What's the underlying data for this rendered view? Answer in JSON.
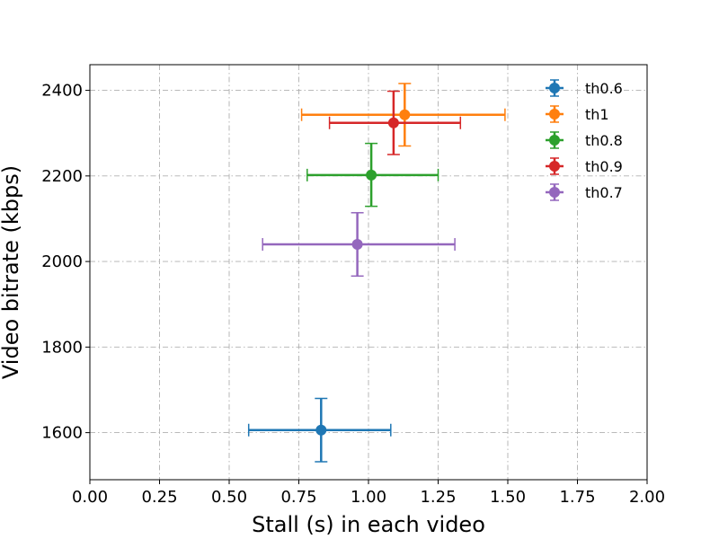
{
  "chart_data": {
    "type": "scatter",
    "title": "",
    "xlabel": "Stall (s) in each video",
    "ylabel": "Video bitrate (kbps)",
    "xlim": [
      0,
      2.0
    ],
    "ylim": [
      1490,
      2460
    ],
    "x_ticks": [
      "0.00",
      "0.25",
      "0.50",
      "0.75",
      "1.00",
      "1.25",
      "1.50",
      "1.75",
      "2.00"
    ],
    "y_ticks": [
      "1600",
      "1800",
      "2000",
      "2200",
      "2400"
    ],
    "grid": true,
    "legend_position": "top-right",
    "series": [
      {
        "name": "th0.6",
        "color": "#1f77b4",
        "x": 0.83,
        "y": 1606,
        "x_err": [
          0.57,
          1.08
        ],
        "y_err": [
          1532,
          1680
        ]
      },
      {
        "name": "th1",
        "color": "#ff7f0e",
        "x": 1.13,
        "y": 2343,
        "x_err": [
          0.76,
          1.49
        ],
        "y_err": [
          2270,
          2416
        ]
      },
      {
        "name": "th0.8",
        "color": "#2ca02c",
        "x": 1.01,
        "y": 2202,
        "x_err": [
          0.78,
          1.25
        ],
        "y_err": [
          2129,
          2276
        ]
      },
      {
        "name": "th0.9",
        "color": "#d62728",
        "x": 1.09,
        "y": 2324,
        "x_err": [
          0.86,
          1.33
        ],
        "y_err": [
          2250,
          2398
        ]
      },
      {
        "name": "th0.7",
        "color": "#9467bd",
        "x": 0.96,
        "y": 2040,
        "x_err": [
          0.62,
          1.31
        ],
        "y_err": [
          1966,
          2114
        ]
      }
    ]
  }
}
